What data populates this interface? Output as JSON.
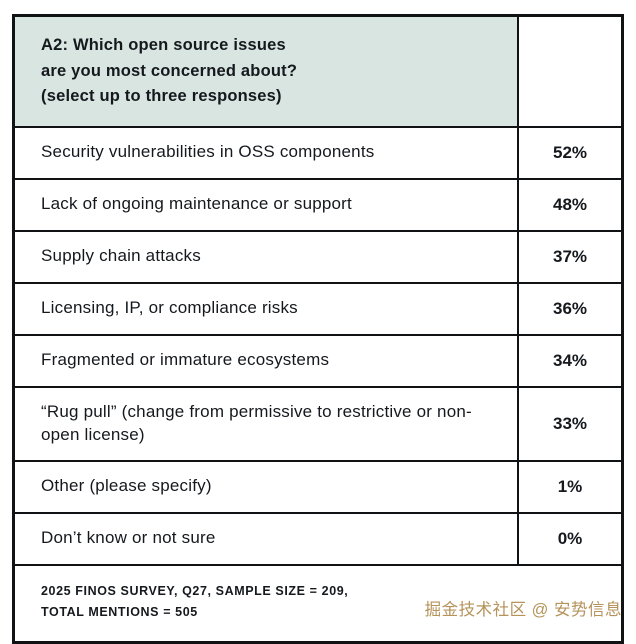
{
  "table": {
    "header_question": "A2: Which open source issues\nare you most concerned about?\n(select up to three responses)",
    "rows": [
      {
        "label": "Security vulnerabilities in OSS components",
        "value": "52%"
      },
      {
        "label": "Lack of ongoing maintenance or support",
        "value": "48%"
      },
      {
        "label": "Supply chain attacks",
        "value": "37%"
      },
      {
        "label": "Licensing, IP, or compliance risks",
        "value": "36%"
      },
      {
        "label": "Fragmented or immature ecosystems",
        "value": "34%"
      },
      {
        "label": "“Rug pull” (change from permissive to restrictive or non-open license)",
        "value": "33%"
      },
      {
        "label": "Other (please specify)",
        "value": "1%"
      },
      {
        "label": "Don’t know or not sure",
        "value": "0%"
      }
    ],
    "footer": "2025 FINOS SURVEY, Q27, SAMPLE SIZE = 209,\nTOTAL MENTIONS = 505"
  },
  "watermark": "掘金技术社区 @ 安势信息",
  "colors": {
    "header_bg": "#d9e5e0",
    "text": "#15191e",
    "border": "#101214",
    "watermark": "#b5935a"
  },
  "chart_data": {
    "type": "table",
    "title": "A2: Which open source issues are you most concerned about? (select up to three responses)",
    "categories": [
      "Security vulnerabilities in OSS components",
      "Lack of ongoing maintenance or support",
      "Supply chain attacks",
      "Licensing, IP, or compliance risks",
      "Fragmented or immature ecosystems",
      "“Rug pull” (change from permissive to restrictive or non-open license)",
      "Other (please specify)",
      "Don’t know or not sure"
    ],
    "values": [
      52,
      48,
      37,
      36,
      34,
      33,
      1,
      0
    ],
    "unit": "%",
    "source": "2025 FINOS SURVEY, Q27, SAMPLE SIZE = 209, TOTAL MENTIONS = 505"
  }
}
